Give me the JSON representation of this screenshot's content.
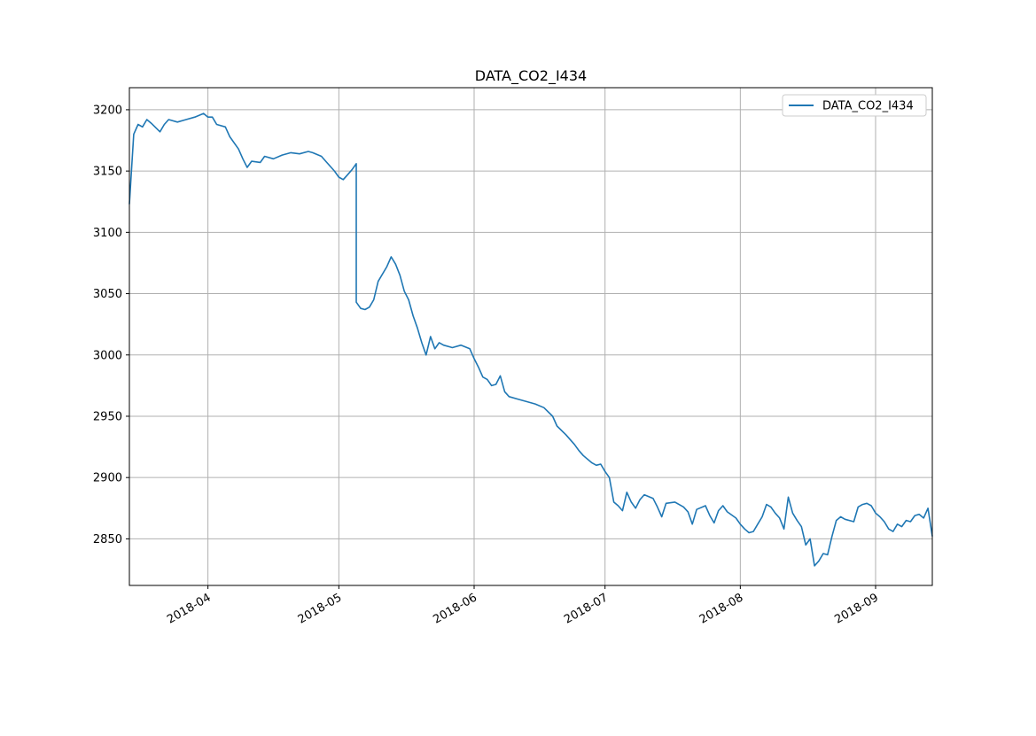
{
  "chart_data": {
    "type": "line",
    "title": "DATA_CO2_I434",
    "xlabel": "",
    "ylabel": "",
    "x_axis": "date",
    "xlim": [
      "2018-03-14",
      "2018-09-14"
    ],
    "ylim": [
      2812,
      3218
    ],
    "grid": true,
    "legend_position": "top-right",
    "x_ticks": [
      {
        "date": "2018-04-01",
        "label": "2018-04"
      },
      {
        "date": "2018-05-01",
        "label": "2018-05"
      },
      {
        "date": "2018-06-01",
        "label": "2018-06"
      },
      {
        "date": "2018-07-01",
        "label": "2018-07"
      },
      {
        "date": "2018-08-01",
        "label": "2018-08"
      },
      {
        "date": "2018-09-01",
        "label": "2018-09"
      }
    ],
    "y_ticks": [
      2850,
      2900,
      2950,
      3000,
      3050,
      3100,
      3150,
      3200
    ],
    "series": [
      {
        "name": "DATA_CO2_I434",
        "color": "#1f77b4",
        "points": [
          [
            "2018-03-14",
            3123
          ],
          [
            "2018-03-15",
            3180
          ],
          [
            "2018-03-16",
            3188
          ],
          [
            "2018-03-17",
            3186
          ],
          [
            "2018-03-18",
            3192
          ],
          [
            "2018-03-19",
            3189
          ],
          [
            "2018-03-21",
            3182
          ],
          [
            "2018-03-22",
            3188
          ],
          [
            "2018-03-23",
            3192
          ],
          [
            "2018-03-25",
            3190
          ],
          [
            "2018-03-27",
            3192
          ],
          [
            "2018-03-29",
            3194
          ],
          [
            "2018-03-31",
            3197
          ],
          [
            "2018-04-01",
            3194
          ],
          [
            "2018-04-02",
            3194
          ],
          [
            "2018-04-03",
            3188
          ],
          [
            "2018-04-05",
            3186
          ],
          [
            "2018-04-06",
            3178
          ],
          [
            "2018-04-08",
            3168
          ],
          [
            "2018-04-09",
            3160
          ],
          [
            "2018-04-10",
            3153
          ],
          [
            "2018-04-11",
            3158
          ],
          [
            "2018-04-13",
            3157
          ],
          [
            "2018-04-14",
            3162
          ],
          [
            "2018-04-16",
            3160
          ],
          [
            "2018-04-18",
            3163
          ],
          [
            "2018-04-20",
            3165
          ],
          [
            "2018-04-22",
            3164
          ],
          [
            "2018-04-24",
            3166
          ],
          [
            "2018-04-25",
            3165
          ],
          [
            "2018-04-27",
            3162
          ],
          [
            "2018-04-28",
            3158
          ],
          [
            "2018-04-30",
            3150
          ],
          [
            "2018-05-01",
            3145
          ],
          [
            "2018-05-02",
            3143
          ],
          [
            "2018-05-03",
            3147
          ],
          [
            "2018-05-04",
            3151
          ],
          [
            "2018-05-05",
            3156
          ],
          [
            "2018-05-05",
            3043
          ],
          [
            "2018-05-06",
            3038
          ],
          [
            "2018-05-07",
            3037
          ],
          [
            "2018-05-08",
            3039
          ],
          [
            "2018-05-09",
            3045
          ],
          [
            "2018-05-10",
            3060
          ],
          [
            "2018-05-12",
            3072
          ],
          [
            "2018-05-13",
            3080
          ],
          [
            "2018-05-14",
            3074
          ],
          [
            "2018-05-15",
            3065
          ],
          [
            "2018-05-16",
            3052
          ],
          [
            "2018-05-17",
            3045
          ],
          [
            "2018-05-18",
            3032
          ],
          [
            "2018-05-19",
            3022
          ],
          [
            "2018-05-20",
            3010
          ],
          [
            "2018-05-21",
            3000
          ],
          [
            "2018-05-22",
            3015
          ],
          [
            "2018-05-23",
            3005
          ],
          [
            "2018-05-24",
            3010
          ],
          [
            "2018-05-25",
            3008
          ],
          [
            "2018-05-27",
            3006
          ],
          [
            "2018-05-29",
            3008
          ],
          [
            "2018-05-31",
            3005
          ],
          [
            "2018-06-01",
            2997
          ],
          [
            "2018-06-02",
            2990
          ],
          [
            "2018-06-03",
            2982
          ],
          [
            "2018-06-04",
            2980
          ],
          [
            "2018-06-05",
            2975
          ],
          [
            "2018-06-06",
            2976
          ],
          [
            "2018-06-07",
            2983
          ],
          [
            "2018-06-08",
            2970
          ],
          [
            "2018-06-09",
            2966
          ],
          [
            "2018-06-11",
            2964
          ],
          [
            "2018-06-13",
            2962
          ],
          [
            "2018-06-15",
            2960
          ],
          [
            "2018-06-17",
            2957
          ],
          [
            "2018-06-19",
            2950
          ],
          [
            "2018-06-20",
            2942
          ],
          [
            "2018-06-22",
            2935
          ],
          [
            "2018-06-24",
            2927
          ],
          [
            "2018-06-25",
            2922
          ],
          [
            "2018-06-26",
            2918
          ],
          [
            "2018-06-28",
            2912
          ],
          [
            "2018-06-29",
            2910
          ],
          [
            "2018-06-30",
            2911
          ],
          [
            "2018-07-01",
            2905
          ],
          [
            "2018-07-02",
            2900
          ],
          [
            "2018-07-03",
            2880
          ],
          [
            "2018-07-04",
            2877
          ],
          [
            "2018-07-05",
            2873
          ],
          [
            "2018-07-06",
            2888
          ],
          [
            "2018-07-07",
            2880
          ],
          [
            "2018-07-08",
            2875
          ],
          [
            "2018-07-09",
            2882
          ],
          [
            "2018-07-10",
            2886
          ],
          [
            "2018-07-12",
            2883
          ],
          [
            "2018-07-13",
            2876
          ],
          [
            "2018-07-14",
            2868
          ],
          [
            "2018-07-15",
            2879
          ],
          [
            "2018-07-17",
            2880
          ],
          [
            "2018-07-19",
            2876
          ],
          [
            "2018-07-20",
            2872
          ],
          [
            "2018-07-21",
            2862
          ],
          [
            "2018-07-22",
            2874
          ],
          [
            "2018-07-24",
            2877
          ],
          [
            "2018-07-25",
            2869
          ],
          [
            "2018-07-26",
            2863
          ],
          [
            "2018-07-27",
            2873
          ],
          [
            "2018-07-28",
            2877
          ],
          [
            "2018-07-29",
            2872
          ],
          [
            "2018-07-31",
            2867
          ],
          [
            "2018-08-01",
            2862
          ],
          [
            "2018-08-02",
            2858
          ],
          [
            "2018-08-03",
            2855
          ],
          [
            "2018-08-04",
            2856
          ],
          [
            "2018-08-05",
            2862
          ],
          [
            "2018-08-06",
            2868
          ],
          [
            "2018-08-07",
            2878
          ],
          [
            "2018-08-08",
            2876
          ],
          [
            "2018-08-09",
            2871
          ],
          [
            "2018-08-10",
            2867
          ],
          [
            "2018-08-11",
            2858
          ],
          [
            "2018-08-12",
            2884
          ],
          [
            "2018-08-13",
            2871
          ],
          [
            "2018-08-14",
            2865
          ],
          [
            "2018-08-15",
            2860
          ],
          [
            "2018-08-16",
            2845
          ],
          [
            "2018-08-17",
            2850
          ],
          [
            "2018-08-18",
            2828
          ],
          [
            "2018-08-19",
            2832
          ],
          [
            "2018-08-20",
            2838
          ],
          [
            "2018-08-21",
            2837
          ],
          [
            "2018-08-22",
            2852
          ],
          [
            "2018-08-23",
            2865
          ],
          [
            "2018-08-24",
            2868
          ],
          [
            "2018-08-25",
            2866
          ],
          [
            "2018-08-27",
            2864
          ],
          [
            "2018-08-28",
            2876
          ],
          [
            "2018-08-29",
            2878
          ],
          [
            "2018-08-30",
            2879
          ],
          [
            "2018-08-31",
            2877
          ],
          [
            "2018-09-01",
            2871
          ],
          [
            "2018-09-02",
            2868
          ],
          [
            "2018-09-03",
            2864
          ],
          [
            "2018-09-04",
            2858
          ],
          [
            "2018-09-05",
            2856
          ],
          [
            "2018-09-06",
            2862
          ],
          [
            "2018-09-07",
            2860
          ],
          [
            "2018-09-08",
            2865
          ],
          [
            "2018-09-09",
            2864
          ],
          [
            "2018-09-10",
            2869
          ],
          [
            "2018-09-11",
            2870
          ],
          [
            "2018-09-12",
            2867
          ],
          [
            "2018-09-13",
            2875
          ],
          [
            "2018-09-14",
            2852
          ]
        ]
      }
    ]
  }
}
